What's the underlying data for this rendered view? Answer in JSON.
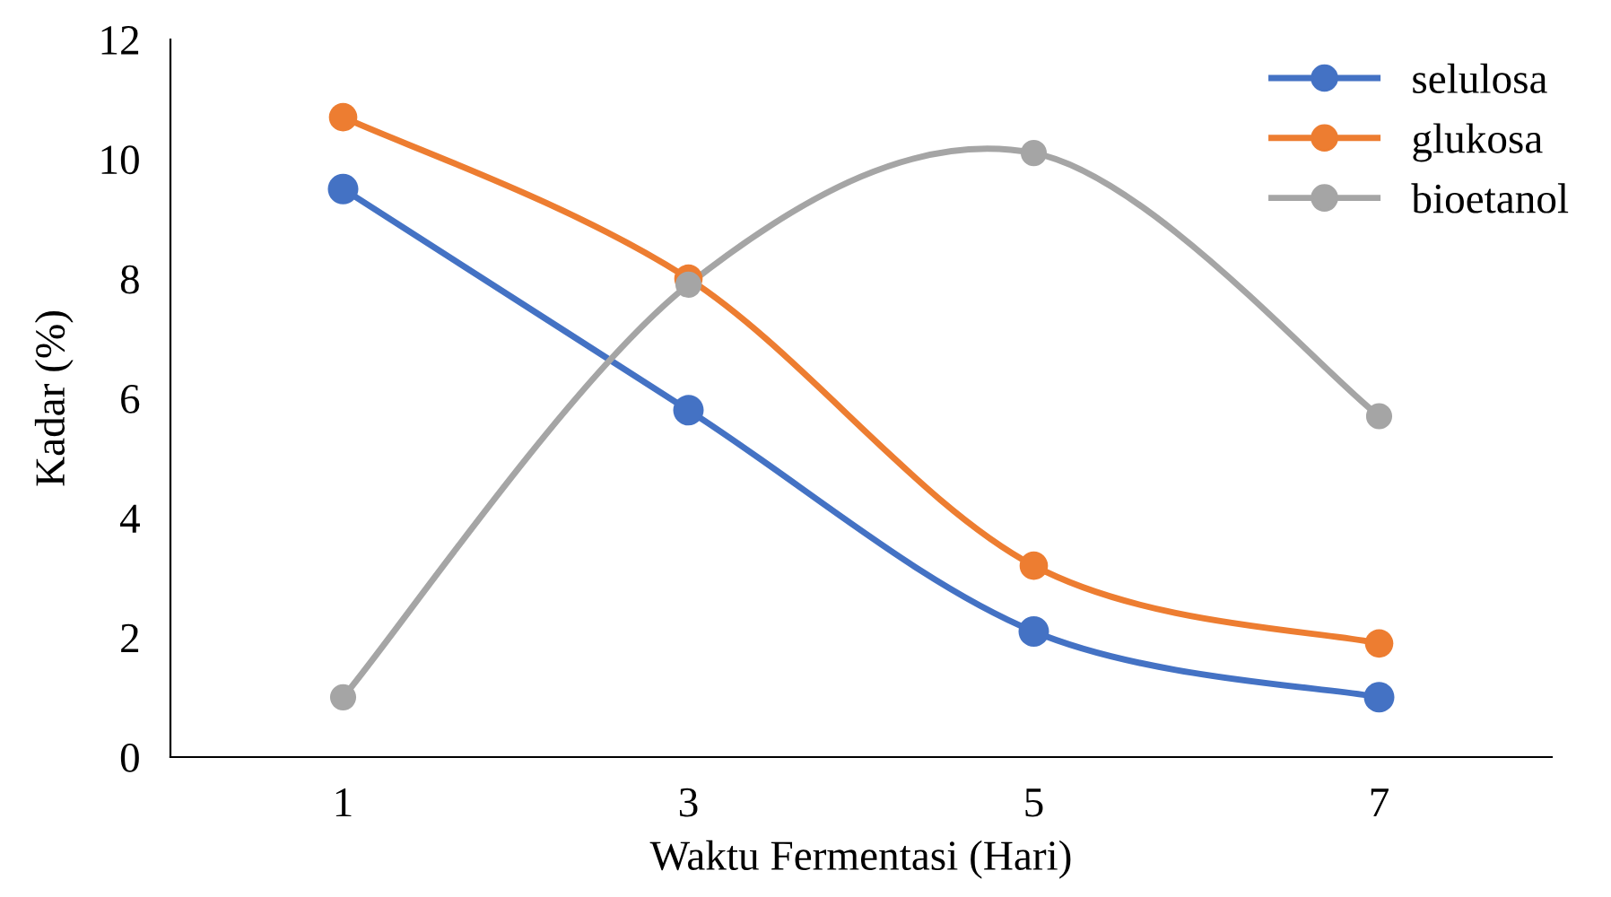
{
  "chart_data": {
    "type": "line",
    "xlabel": "Waktu Fermentasi (Hari)",
    "ylabel": "Kadar (%)",
    "categories": [
      "1",
      "3",
      "5",
      "7"
    ],
    "series": [
      {
        "name": "selulosa",
        "color": "#4472c4",
        "values": [
          9.5,
          5.8,
          2.1,
          1.0
        ]
      },
      {
        "name": "glukosa",
        "color": "#ed7d31",
        "values": [
          10.7,
          8.0,
          3.2,
          1.9
        ]
      },
      {
        "name": "bioetanol",
        "color": "#a5a5a5",
        "values": [
          1.0,
          7.9,
          10.1,
          5.7
        ]
      }
    ],
    "ylim": [
      0,
      12
    ],
    "yticks": [
      0,
      2,
      4,
      6,
      8,
      10,
      12
    ],
    "grid": false,
    "legend": "top right",
    "marker": "circle",
    "line_style": "solid"
  }
}
